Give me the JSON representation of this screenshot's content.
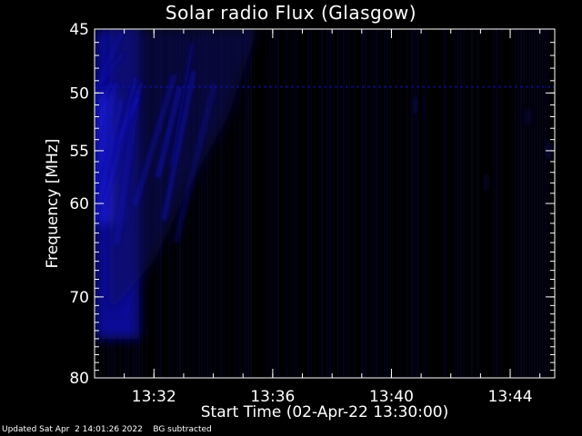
{
  "chart_data": {
    "type": "heatmap",
    "title": "Solar radio Flux (Glasgow)",
    "xlabel": "Start Time (02-Apr-22 13:30:00)",
    "ylabel": "Frequency [MHz]",
    "x_unit": "minutes after 13:30:00",
    "xlim": [
      0,
      15.5
    ],
    "ylim": [
      45,
      80
    ],
    "y_reversed": true,
    "x_ticks": [
      {
        "value": 2,
        "label": "13:32"
      },
      {
        "value": 6,
        "label": "13:36"
      },
      {
        "value": 10,
        "label": "13:40"
      },
      {
        "value": 14,
        "label": "13:44"
      }
    ],
    "y_ticks": [
      {
        "value": 45,
        "label": "45"
      },
      {
        "value": 50,
        "label": "50"
      },
      {
        "value": 55,
        "label": "55"
      },
      {
        "value": 60,
        "label": "60"
      },
      {
        "value": 70,
        "label": "70"
      },
      {
        "value": 80,
        "label": "80"
      }
    ],
    "colormap": [
      "#000000",
      "#0a0a5a",
      "#1010b0",
      "#2a2aff"
    ],
    "background": "#000000",
    "axis_color": "#ffffff",
    "features": [
      {
        "description": "intense emission at start",
        "x_start": 0,
        "x_end": 1.5,
        "y_start": 45,
        "y_end": 75,
        "intensity": 0.85
      },
      {
        "description": "drifting burst",
        "x_start": 0.5,
        "x_end": 5.5,
        "y_start": 45,
        "y_end": 72,
        "intensity": 0.6
      },
      {
        "description": "interference line",
        "frequency": 49.5,
        "x_start": 0,
        "x_end": 15.5,
        "intensity": 0.3
      },
      {
        "description": "interference line",
        "frequency": 72.5,
        "x_start": 0,
        "x_end": 1.2,
        "intensity": 0.15
      }
    ]
  },
  "footer": {
    "updated": "Updated Sat Apr  2 14:01:26 2022",
    "note": "BG subtracted"
  }
}
